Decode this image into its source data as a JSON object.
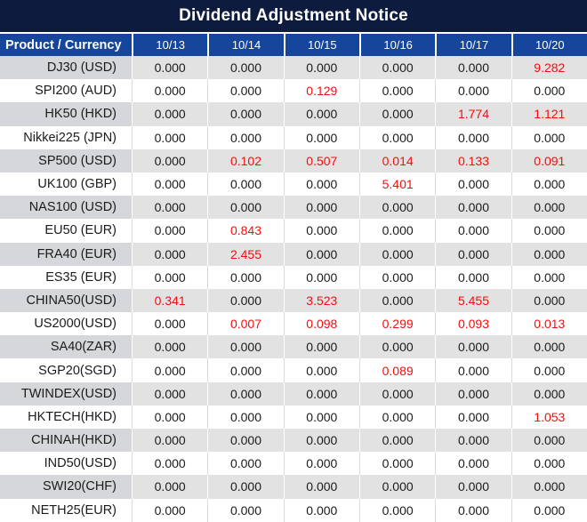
{
  "title": "Dividend Adjustment Notice",
  "colors": {
    "title_bar_bg": "#0d1c3e",
    "header_bg": "#15469c",
    "header_text": "#ffffff",
    "row_gray_product_bg": "#d5d7db",
    "row_gray_value_bg": "#e2e2e2",
    "value_text": "#1b1b1b",
    "highlight_red": "#f50d0d"
  },
  "chart_data": {
    "type": "table",
    "title": "Dividend Adjustment Notice",
    "columns": [
      "Product / Currency",
      "10/13",
      "10/14",
      "10/15",
      "10/16",
      "10/17",
      "10/20"
    ],
    "rows": [
      {
        "product": "DJ30 (USD)",
        "values": [
          "0.000",
          "0.000",
          "0.000",
          "0.000",
          "0.000",
          "9.282"
        ],
        "red": [
          false,
          false,
          false,
          false,
          false,
          true
        ]
      },
      {
        "product": "SPI200 (AUD)",
        "values": [
          "0.000",
          "0.000",
          "0.129",
          "0.000",
          "0.000",
          "0.000"
        ],
        "red": [
          false,
          false,
          true,
          false,
          false,
          false
        ]
      },
      {
        "product": "HK50 (HKD)",
        "values": [
          "0.000",
          "0.000",
          "0.000",
          "0.000",
          "1.774",
          "1.121"
        ],
        "red": [
          false,
          false,
          false,
          false,
          true,
          true
        ]
      },
      {
        "product": "Nikkei225 (JPN)",
        "values": [
          "0.000",
          "0.000",
          "0.000",
          "0.000",
          "0.000",
          "0.000"
        ],
        "red": [
          false,
          false,
          false,
          false,
          false,
          false
        ]
      },
      {
        "product": "SP500 (USD)",
        "values": [
          "0.000",
          "0.102",
          "0.507",
          "0.014",
          "0.133",
          "0.091"
        ],
        "red": [
          false,
          true,
          true,
          true,
          true,
          true
        ]
      },
      {
        "product": "UK100 (GBP)",
        "values": [
          "0.000",
          "0.000",
          "0.000",
          "5.401",
          "0.000",
          "0.000"
        ],
        "red": [
          false,
          false,
          false,
          true,
          false,
          false
        ]
      },
      {
        "product": "NAS100 (USD)",
        "values": [
          "0.000",
          "0.000",
          "0.000",
          "0.000",
          "0.000",
          "0.000"
        ],
        "red": [
          false,
          false,
          false,
          false,
          false,
          false
        ]
      },
      {
        "product": "EU50 (EUR)",
        "values": [
          "0.000",
          "0.843",
          "0.000",
          "0.000",
          "0.000",
          "0.000"
        ],
        "red": [
          false,
          true,
          false,
          false,
          false,
          false
        ]
      },
      {
        "product": "FRA40 (EUR)",
        "values": [
          "0.000",
          "2.455",
          "0.000",
          "0.000",
          "0.000",
          "0.000"
        ],
        "red": [
          false,
          true,
          false,
          false,
          false,
          false
        ]
      },
      {
        "product": "ES35 (EUR)",
        "values": [
          "0.000",
          "0.000",
          "0.000",
          "0.000",
          "0.000",
          "0.000"
        ],
        "red": [
          false,
          false,
          false,
          false,
          false,
          false
        ]
      },
      {
        "product": "CHINA50(USD)",
        "values": [
          "0.341",
          "0.000",
          "3.523",
          "0.000",
          "5.455",
          "0.000"
        ],
        "red": [
          true,
          false,
          true,
          false,
          true,
          false
        ]
      },
      {
        "product": "US2000(USD)",
        "values": [
          "0.000",
          "0.007",
          "0.098",
          "0.299",
          "0.093",
          "0.013"
        ],
        "red": [
          false,
          true,
          true,
          true,
          true,
          true
        ]
      },
      {
        "product": "SA40(ZAR)",
        "values": [
          "0.000",
          "0.000",
          "0.000",
          "0.000",
          "0.000",
          "0.000"
        ],
        "red": [
          false,
          false,
          false,
          false,
          false,
          false
        ]
      },
      {
        "product": "SGP20(SGD)",
        "values": [
          "0.000",
          "0.000",
          "0.000",
          "0.089",
          "0.000",
          "0.000"
        ],
        "red": [
          false,
          false,
          false,
          true,
          false,
          false
        ]
      },
      {
        "product": "TWINDEX(USD)",
        "values": [
          "0.000",
          "0.000",
          "0.000",
          "0.000",
          "0.000",
          "0.000"
        ],
        "red": [
          false,
          false,
          false,
          false,
          false,
          false
        ]
      },
      {
        "product": "HKTECH(HKD)",
        "values": [
          "0.000",
          "0.000",
          "0.000",
          "0.000",
          "0.000",
          "1.053"
        ],
        "red": [
          false,
          false,
          false,
          false,
          false,
          true
        ]
      },
      {
        "product": "CHINAH(HKD)",
        "values": [
          "0.000",
          "0.000",
          "0.000",
          "0.000",
          "0.000",
          "0.000"
        ],
        "red": [
          false,
          false,
          false,
          false,
          false,
          false
        ]
      },
      {
        "product": "IND50(USD)",
        "values": [
          "0.000",
          "0.000",
          "0.000",
          "0.000",
          "0.000",
          "0.000"
        ],
        "red": [
          false,
          false,
          false,
          false,
          false,
          false
        ]
      },
      {
        "product": "SWI20(CHF)",
        "values": [
          "0.000",
          "0.000",
          "0.000",
          "0.000",
          "0.000",
          "0.000"
        ],
        "red": [
          false,
          false,
          false,
          false,
          false,
          false
        ]
      },
      {
        "product": "NETH25(EUR)",
        "values": [
          "0.000",
          "0.000",
          "0.000",
          "0.000",
          "0.000",
          "0.000"
        ],
        "red": [
          false,
          false,
          false,
          false,
          false,
          false
        ]
      }
    ]
  }
}
